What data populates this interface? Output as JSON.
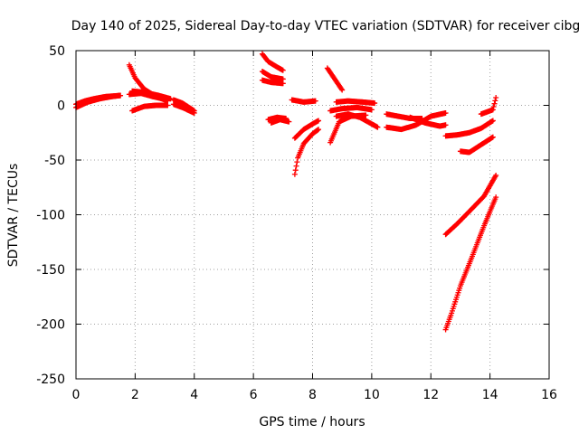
{
  "chart_data": {
    "type": "scatter",
    "title": "Day 140 of 2025, Sidereal Day-to-day VTEC variation (SDTVAR) for receiver cibg",
    "xlabel": "GPS time / hours",
    "ylabel": "SDTVAR / TECUs",
    "xlim": [
      0,
      16
    ],
    "ylim": [
      -250,
      50
    ],
    "xticks": [
      "0",
      "2",
      "4",
      "6",
      "8",
      "10",
      "12",
      "14",
      "16"
    ],
    "yticks": [
      "50",
      "0",
      "-50",
      "-100",
      "-150",
      "-200",
      "-250"
    ],
    "grid": true,
    "marker": "+",
    "color": "#ff0000",
    "arcs": [
      {
        "x": [
          0.0,
          0.4,
          0.8,
          1.2,
          1.5
        ],
        "y": [
          -2,
          3,
          6,
          8,
          9
        ]
      },
      {
        "x": [
          0.0,
          0.3,
          0.6,
          1.0,
          1.5
        ],
        "y": [
          1,
          4,
          6,
          8,
          9
        ]
      },
      {
        "x": [
          1.8,
          2.0,
          2.3,
          2.7,
          3.1
        ],
        "y": [
          37,
          25,
          15,
          8,
          4
        ]
      },
      {
        "x": [
          1.9,
          2.3,
          2.8,
          3.2
        ],
        "y": [
          13,
          12,
          9,
          6
        ]
      },
      {
        "x": [
          1.8,
          2.2,
          2.6,
          3.1
        ],
        "y": [
          10,
          11,
          8,
          5
        ]
      },
      {
        "x": [
          1.9,
          2.3,
          2.7,
          3.1
        ],
        "y": [
          -5,
          -1,
          0,
          0
        ]
      },
      {
        "x": [
          3.3,
          3.6,
          4.0
        ],
        "y": [
          5,
          2,
          -5
        ]
      },
      {
        "x": [
          3.3,
          3.6,
          4.0
        ],
        "y": [
          1,
          -2,
          -7
        ]
      },
      {
        "x": [
          6.3,
          6.5,
          6.8,
          7.0
        ],
        "y": [
          47,
          40,
          35,
          32
        ]
      },
      {
        "x": [
          6.3,
          6.6,
          7.0
        ],
        "y": [
          31,
          26,
          24
        ]
      },
      {
        "x": [
          6.3,
          6.6,
          7.0
        ],
        "y": [
          23,
          21,
          20
        ]
      },
      {
        "x": [
          6.5,
          6.8,
          7.1
        ],
        "y": [
          -13,
          -11,
          -12
        ]
      },
      {
        "x": [
          6.6,
          6.9,
          7.2
        ],
        "y": [
          -16,
          -13,
          -15
        ]
      },
      {
        "x": [
          7.3,
          7.7,
          8.1
        ],
        "y": [
          5,
          3,
          4
        ]
      },
      {
        "x": [
          7.4,
          7.5,
          7.7,
          8.0,
          8.2
        ],
        "y": [
          -63,
          -48,
          -35,
          -26,
          -22
        ]
      },
      {
        "x": [
          7.4,
          7.7,
          8.0,
          8.2
        ],
        "y": [
          -30,
          -22,
          -17,
          -14
        ]
      },
      {
        "x": [
          8.5,
          8.7,
          9.0
        ],
        "y": [
          34,
          26,
          14
        ]
      },
      {
        "x": [
          8.6,
          8.9,
          9.3,
          9.8
        ],
        "y": [
          -34,
          -15,
          -10,
          -9
        ]
      },
      {
        "x": [
          8.6,
          9.0,
          9.5,
          10.0
        ],
        "y": [
          -5,
          -3,
          -2,
          -4
        ]
      },
      {
        "x": [
          8.8,
          9.2,
          9.7,
          10.1
        ],
        "y": [
          3,
          4,
          3,
          2
        ]
      },
      {
        "x": [
          8.8,
          9.2,
          9.6,
          10.0,
          10.2
        ],
        "y": [
          -10,
          -8,
          -11,
          -17,
          -20
        ]
      },
      {
        "x": [
          10.5,
          10.9,
          11.3,
          11.7
        ],
        "y": [
          -8,
          -10,
          -12,
          -12
        ]
      },
      {
        "x": [
          10.5,
          11.0,
          11.5,
          12.0,
          12.5
        ],
        "y": [
          -20,
          -22,
          -18,
          -10,
          -7
        ]
      },
      {
        "x": [
          11.3,
          11.8,
          12.3,
          12.5
        ],
        "y": [
          -11,
          -16,
          -19,
          -18
        ]
      },
      {
        "x": [
          12.5,
          12.9,
          13.3,
          13.7,
          14.1
        ],
        "y": [
          -28,
          -27,
          -25,
          -21,
          -14
        ]
      },
      {
        "x": [
          13.0,
          13.3,
          13.7,
          14.1
        ],
        "y": [
          -42,
          -43,
          -36,
          -29
        ]
      },
      {
        "x": [
          13.7,
          13.9,
          14.1,
          14.2
        ],
        "y": [
          -8,
          -6,
          -4,
          7
        ]
      },
      {
        "x": [
          12.5,
          12.9,
          13.3,
          13.8,
          14.2
        ],
        "y": [
          -118,
          -108,
          -97,
          -83,
          -64
        ]
      },
      {
        "x": [
          12.5,
          12.7,
          13.0,
          13.4,
          13.8,
          14.2
        ],
        "y": [
          -205,
          -190,
          -165,
          -138,
          -110,
          -84
        ]
      }
    ]
  }
}
